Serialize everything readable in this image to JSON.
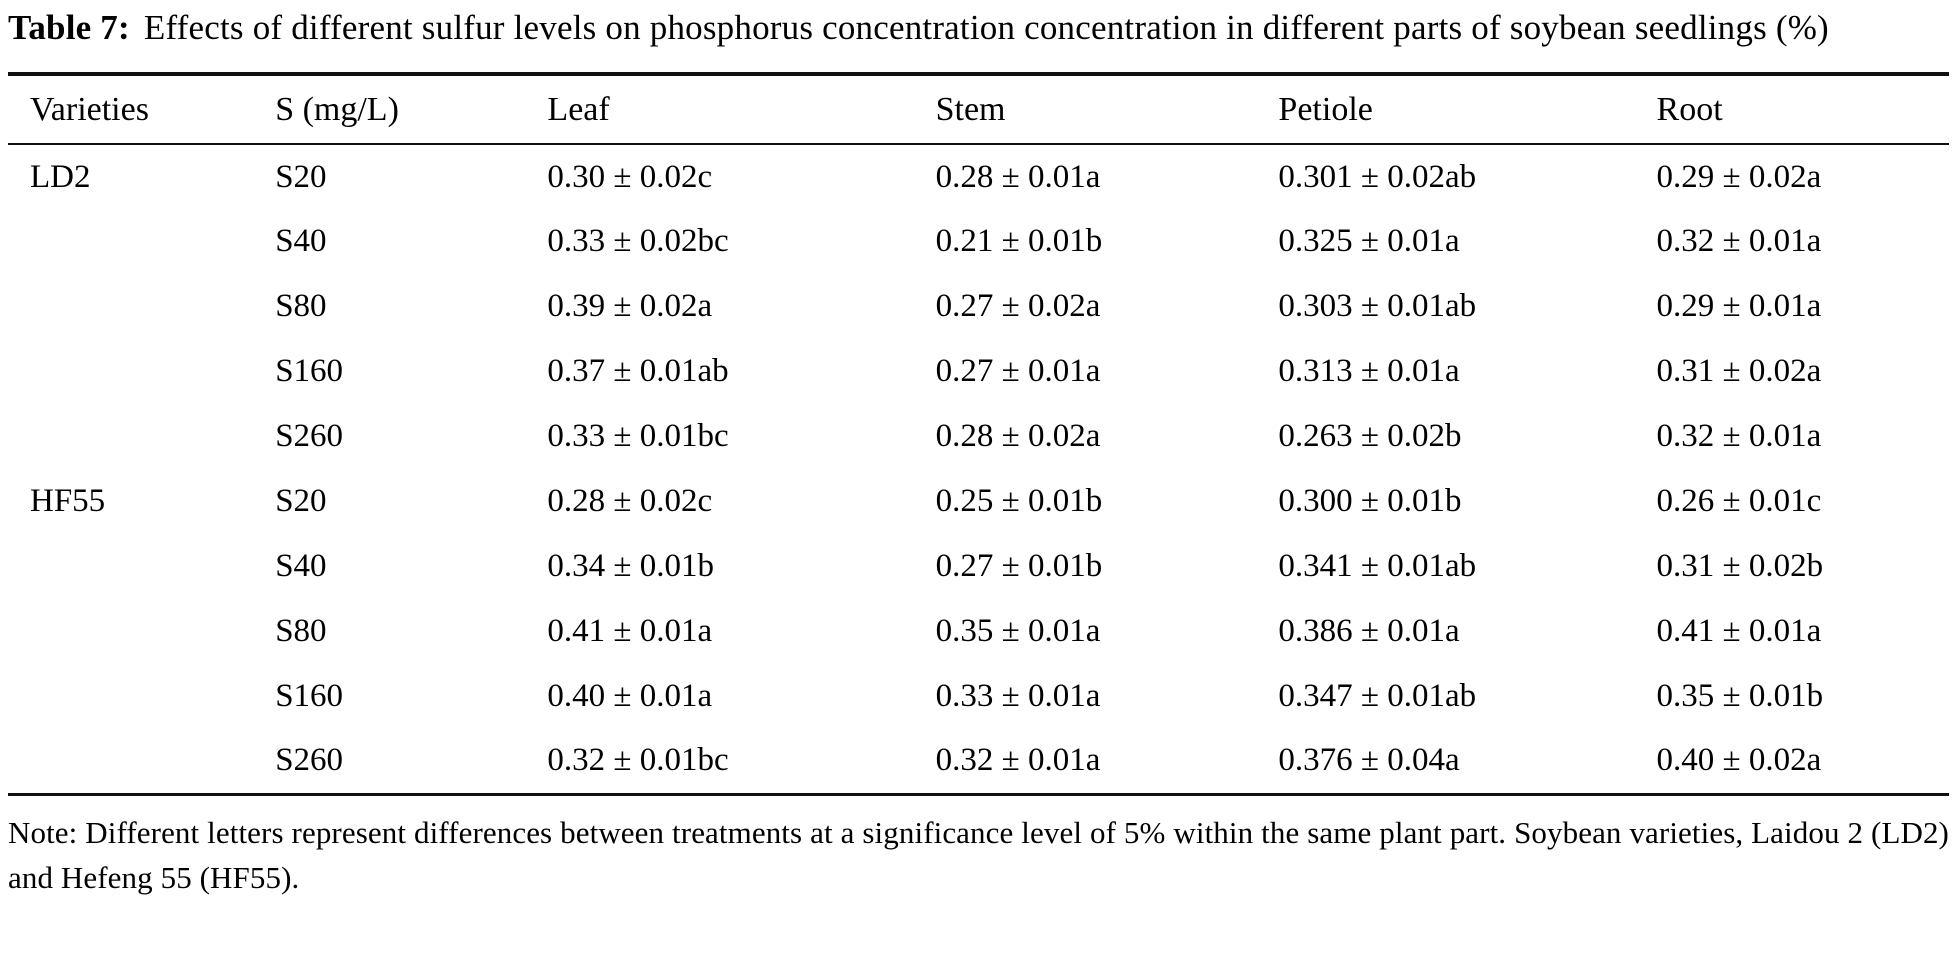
{
  "title": {
    "label": "Table 7:",
    "text": "Effects of different sulfur levels on phosphorus concentration concentration in different parts of soybean seedlings (%)"
  },
  "table": {
    "columns": [
      "Varieties",
      "S (mg/L)",
      "Leaf",
      "Stem",
      "Petiole",
      "Root"
    ],
    "rows": [
      {
        "variety": "LD2",
        "s_level": "S20",
        "leaf": "0.30 ± 0.02c",
        "stem": "0.28 ± 0.01a",
        "petiole": "0.301 ± 0.02ab",
        "root": "0.29 ± 0.02a"
      },
      {
        "variety": "",
        "s_level": "S40",
        "leaf": "0.33 ± 0.02bc",
        "stem": "0.21 ± 0.01b",
        "petiole": "0.325 ± 0.01a",
        "root": "0.32 ± 0.01a"
      },
      {
        "variety": "",
        "s_level": "S80",
        "leaf": "0.39 ± 0.02a",
        "stem": "0.27 ± 0.02a",
        "petiole": "0.303 ± 0.01ab",
        "root": "0.29 ± 0.01a"
      },
      {
        "variety": "",
        "s_level": "S160",
        "leaf": "0.37 ± 0.01ab",
        "stem": "0.27 ± 0.01a",
        "petiole": "0.313 ± 0.01a",
        "root": "0.31 ± 0.02a"
      },
      {
        "variety": "",
        "s_level": "S260",
        "leaf": "0.33 ± 0.01bc",
        "stem": "0.28 ± 0.02a",
        "petiole": "0.263 ± 0.02b",
        "root": "0.32 ± 0.01a"
      },
      {
        "variety": "HF55",
        "s_level": "S20",
        "leaf": "0.28 ± 0.02c",
        "stem": "0.25 ± 0.01b",
        "petiole": "0.300 ± 0.01b",
        "root": "0.26 ± 0.01c"
      },
      {
        "variety": "",
        "s_level": "S40",
        "leaf": "0.34 ± 0.01b",
        "stem": "0.27 ± 0.01b",
        "petiole": "0.341 ± 0.01ab",
        "root": "0.31 ± 0.02b"
      },
      {
        "variety": "",
        "s_level": "S80",
        "leaf": "0.41 ± 0.01a",
        "stem": "0.35 ± 0.01a",
        "petiole": "0.386 ± 0.01a",
        "root": "0.41 ± 0.01a"
      },
      {
        "variety": "",
        "s_level": "S160",
        "leaf": "0.40 ± 0.01a",
        "stem": "0.33 ± 0.01a",
        "petiole": "0.347 ± 0.01ab",
        "root": "0.35 ± 0.01b"
      },
      {
        "variety": "",
        "s_level": "S260",
        "leaf": "0.32 ± 0.01bc",
        "stem": "0.32 ± 0.01a",
        "petiole": "0.376 ± 0.04a",
        "root": "0.40 ± 0.02a"
      }
    ]
  },
  "note": {
    "text": "Note: Different letters represent differences between treatments at a significance level of 5% within the same plant part. Soybean varieties, Laidou 2 (LD2) and Hefeng 55 (HF55)."
  },
  "colors": {
    "text": "#000000",
    "background": "#ffffff",
    "rule": "#111111"
  }
}
